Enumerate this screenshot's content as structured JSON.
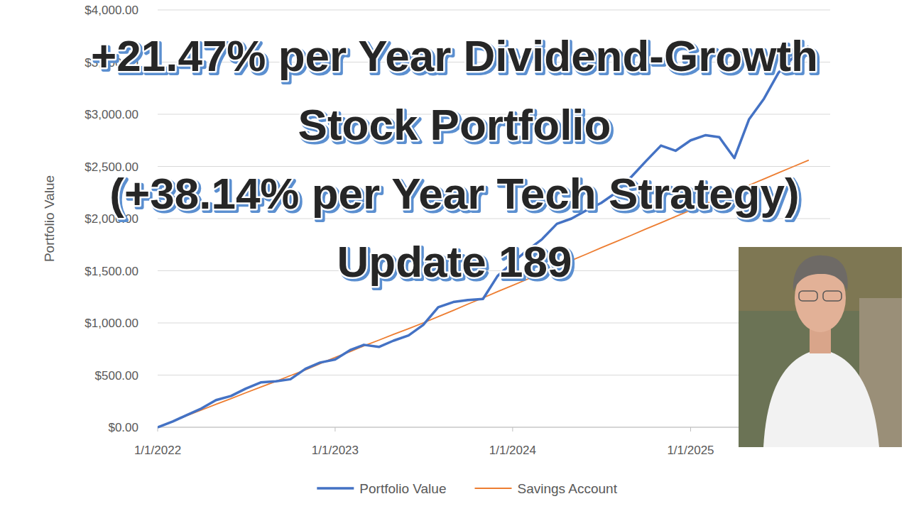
{
  "chart_data": {
    "type": "line",
    "title": [
      "+21.47% per Year Dividend-Growth",
      "Stock Portfolio",
      "(+38.14% per Year Tech Strategy)",
      "Update 189"
    ],
    "y_label": "Portfolio Value",
    "x": [
      "2022-01-01",
      "2022-02-01",
      "2022-03-01",
      "2022-04-01",
      "2022-05-01",
      "2022-06-01",
      "2022-07-01",
      "2022-08-01",
      "2022-09-01",
      "2022-10-01",
      "2022-11-01",
      "2022-12-01",
      "2023-01-01",
      "2023-02-01",
      "2023-03-01",
      "2023-04-01",
      "2023-05-01",
      "2023-06-01",
      "2023-07-01",
      "2023-08-01",
      "2023-09-01",
      "2023-10-01",
      "2023-11-01",
      "2023-12-01",
      "2024-01-01",
      "2024-02-01",
      "2024-03-01",
      "2024-04-01",
      "2024-05-01",
      "2024-06-01",
      "2024-07-01",
      "2024-08-01",
      "2024-09-01",
      "2024-10-01",
      "2024-11-01",
      "2024-12-01",
      "2025-01-01",
      "2025-02-01",
      "2025-03-01",
      "2025-04-01",
      "2025-05-01",
      "2025-06-01",
      "2025-07-01",
      "2025-08-01",
      "2025-09-01"
    ],
    "series": [
      {
        "name": "Portfolio Value",
        "color": "#4472c4",
        "values": [
          0,
          55,
          115,
          180,
          260,
          300,
          370,
          430,
          440,
          460,
          560,
          620,
          650,
          740,
          790,
          770,
          830,
          880,
          980,
          1150,
          1200,
          1220,
          1230,
          1450,
          1580,
          1700,
          1800,
          1950,
          2000,
          2080,
          2150,
          2250,
          2400,
          2550,
          2700,
          2650,
          2750,
          2800,
          2780,
          2580,
          2950,
          3150,
          3400,
          3550,
          3650
        ]
      },
      {
        "name": "Savings Account",
        "color": "#ed7d31",
        "values": [
          0,
          55,
          110,
          165,
          220,
          275,
          330,
          385,
          440,
          495,
          550,
          610,
          670,
          725,
          780,
          835,
          890,
          945,
          1000,
          1060,
          1120,
          1180,
          1240,
          1300,
          1360,
          1420,
          1480,
          1540,
          1600,
          1660,
          1720,
          1780,
          1840,
          1900,
          1960,
          2020,
          2080,
          2140,
          2200,
          2260,
          2320,
          2380,
          2440,
          2500,
          2560
        ]
      }
    ],
    "xlim": [
      "2022-01-01",
      "2025-10-15"
    ],
    "xticks": [
      {
        "value": "2022-01-01",
        "label": "1/1/2022"
      },
      {
        "value": "2023-01-01",
        "label": "1/1/2023"
      },
      {
        "value": "2024-01-01",
        "label": "1/1/2024"
      },
      {
        "value": "2025-01-01",
        "label": "1/1/2025"
      }
    ],
    "ylim": [
      0,
      4000
    ],
    "yticks": [
      {
        "value": 0,
        "label": "$0.00"
      },
      {
        "value": 500,
        "label": "$500.00"
      },
      {
        "value": 1000,
        "label": "$1,000.00"
      },
      {
        "value": 1500,
        "label": "$1,500.00"
      },
      {
        "value": 2000,
        "label": "$2,000.00"
      },
      {
        "value": 2500,
        "label": "$2,500.00"
      },
      {
        "value": 3000,
        "label": "$3,000.00"
      },
      {
        "value": 3500,
        "label": "$3,500.00"
      },
      {
        "value": 4000,
        "label": "$4,000.00"
      }
    ],
    "grid": true,
    "legend": "bottom"
  }
}
